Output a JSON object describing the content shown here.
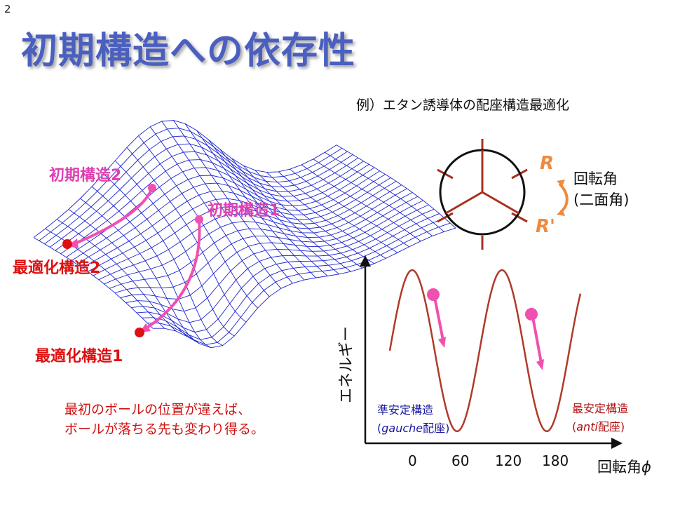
{
  "page_number": "2",
  "title": "初期構造への依存性",
  "example_caption": "例）エタン誘導体の配座構造最適化",
  "surface": {
    "initial1": "初期構造1",
    "initial2": "初期構造2",
    "optimized1": "最適化構造1",
    "optimized2": "最適化構造2"
  },
  "note": {
    "line1": "最初のボールの位置が違えば、",
    "line2": "ボールが落ちる先も変わり得る。"
  },
  "newman": {
    "r_label": "R",
    "r_prime_label": "R'",
    "rotation_line1": "回転角",
    "rotation_line2": "(二面角)"
  },
  "energy_plot": {
    "ylabel": "エネルギー",
    "xlabel": "回転角",
    "xlabel_symbol": "ϕ",
    "ticks": [
      "0",
      "60",
      "120",
      "180"
    ],
    "gauche_line1": "準安定構造",
    "gauche_word": "gauche",
    "gauche_suffix": "配座)",
    "anti_line1": "最安定構造",
    "anti_word": "anti",
    "anti_suffix": "配座)",
    "colors": {
      "curve": "#b03a2a",
      "ball": "#f050b0",
      "arrow": "#f050b0"
    }
  },
  "colors": {
    "title": "#4a5fc0",
    "mesh": "#1a22d0",
    "pink": "#e040b0",
    "red": "#e01010"
  }
}
